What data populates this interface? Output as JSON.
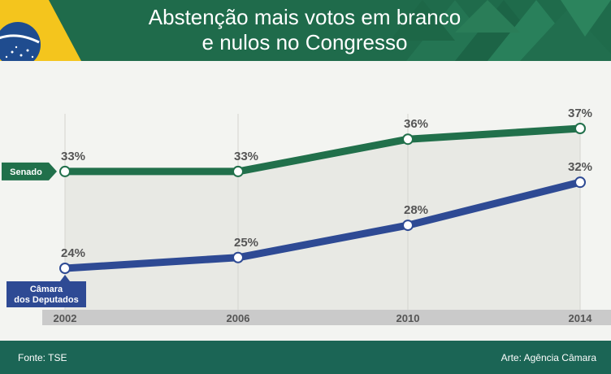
{
  "header": {
    "title_line1": "Abstenção mais votos em branco",
    "title_line2": "e nulos no Congresso"
  },
  "footer": {
    "source": "Fonte: TSE",
    "credit": "Arte: Agência Câmara"
  },
  "colors": {
    "header_green": "#1f6b4b",
    "senado": "#21704b",
    "camara": "#2e4a94",
    "footer": "#1b6555",
    "axis_band": "#cacaca",
    "fill": "#e8e9e4"
  },
  "chart_data": {
    "type": "line",
    "title": "Abstenção mais votos em branco e nulos no Congresso",
    "x": [
      "2002",
      "2006",
      "2010",
      "2014"
    ],
    "series": [
      {
        "name": "Senado",
        "values": [
          33,
          33,
          36,
          37
        ],
        "labels": [
          "33%",
          "33%",
          "36%",
          "37%"
        ],
        "color": "#21704b"
      },
      {
        "name": "Câmara dos Deputados",
        "values": [
          24,
          25,
          28,
          32
        ],
        "labels": [
          "24%",
          "25%",
          "28%",
          "32%"
        ],
        "color": "#2e4a94"
      }
    ],
    "legend_tags": {
      "senado": "Senado",
      "camara_line1": "Câmara",
      "camara_line2": "dos Deputados"
    }
  }
}
